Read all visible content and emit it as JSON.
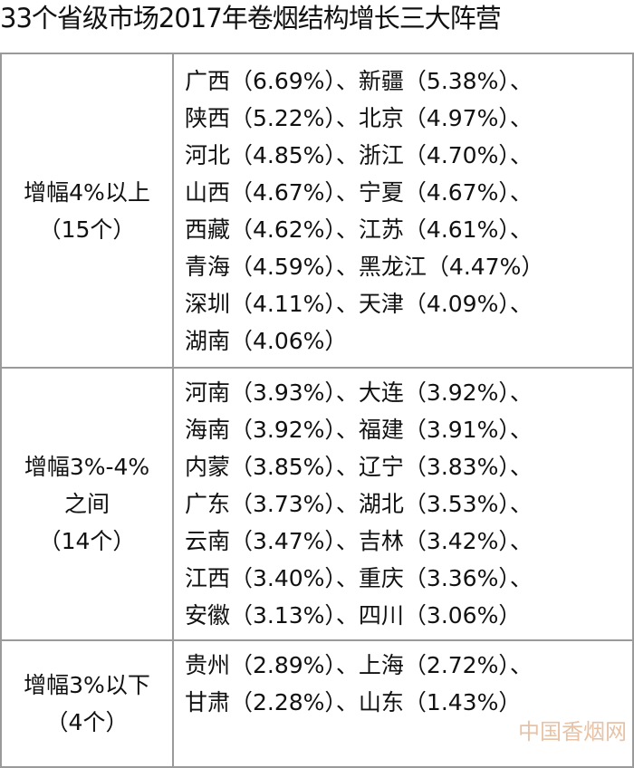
{
  "header": {
    "title": "33个省级市场2017年卷烟结构增长三大阵营"
  },
  "table": {
    "rows": [
      {
        "label": [
          "增幅4%以上",
          "（15个）"
        ],
        "lines": [
          "广西（6.69%）、新疆（5.38%）、",
          "陕西（5.22%）、北京（4.97%）、",
          "河北（4.85%）、浙江（4.70%）、",
          "山西（4.67%）、宁夏（4.67%）、",
          "西藏（4.62%）、江苏（4.61%）、",
          "青海（4.59%）、黑龙江（4.47%）",
          "深圳（4.11%）、天津（4.09%）、",
          "湖南（4.06%）"
        ]
      },
      {
        "label": [
          "增幅3%-4%",
          "之间",
          "（14个）"
        ],
        "lines": [
          "河南（3.93%）、大连（3.92%）、",
          "海南（3.92%）、福建（3.91%）、",
          "内蒙（3.85%）、辽宁（3.83%）、",
          "广东（3.73%）、湖北（3.53%）、",
          "云南（3.47%）、吉林（3.42%）、",
          "江西（3.40%）、重庆（3.36%）、",
          "安徽（3.13%）、四川（3.06%）"
        ]
      },
      {
        "label": [
          "增幅3%以下",
          "（4个）"
        ],
        "lines": [
          "贵州（2.89%）、上海（2.72%）、",
          "甘肃（2.28%）、山东（1.43%）"
        ]
      }
    ]
  },
  "watermark": "中国香烟网"
}
